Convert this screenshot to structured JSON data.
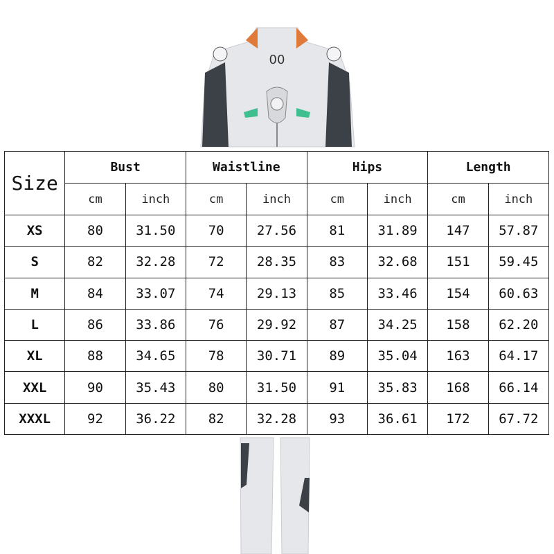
{
  "size_chart": {
    "size_header": "Size",
    "groups": [
      "Bust",
      "Waistline",
      "Hips",
      "Length"
    ],
    "units": [
      "cm",
      "inch"
    ],
    "rows": [
      {
        "size": "XS",
        "values": [
          "80",
          "31.50",
          "70",
          "27.56",
          "81",
          "31.89",
          "147",
          "57.87"
        ]
      },
      {
        "size": "S",
        "values": [
          "82",
          "32.28",
          "72",
          "28.35",
          "83",
          "32.68",
          "151",
          "59.45"
        ]
      },
      {
        "size": "M",
        "values": [
          "84",
          "33.07",
          "74",
          "29.13",
          "85",
          "33.46",
          "154",
          "60.63"
        ]
      },
      {
        "size": "L",
        "values": [
          "86",
          "33.86",
          "76",
          "29.92",
          "87",
          "34.25",
          "158",
          "62.20"
        ]
      },
      {
        "size": "XL",
        "values": [
          "88",
          "34.65",
          "78",
          "30.71",
          "89",
          "35.04",
          "163",
          "64.17"
        ]
      },
      {
        "size": "XXL",
        "values": [
          "90",
          "35.43",
          "80",
          "31.50",
          "91",
          "35.83",
          "168",
          "66.14"
        ]
      },
      {
        "size": "XXXL",
        "values": [
          "92",
          "36.22",
          "82",
          "32.28",
          "93",
          "36.61",
          "172",
          "67.72"
        ]
      }
    ]
  },
  "product_image": {
    "logo_text": "00"
  },
  "colors": {
    "suit": "#e6e7ea",
    "dark_panel": "#3c4147",
    "accent_green": "#3fbf8f",
    "accent_orange": "#e07a3a"
  }
}
